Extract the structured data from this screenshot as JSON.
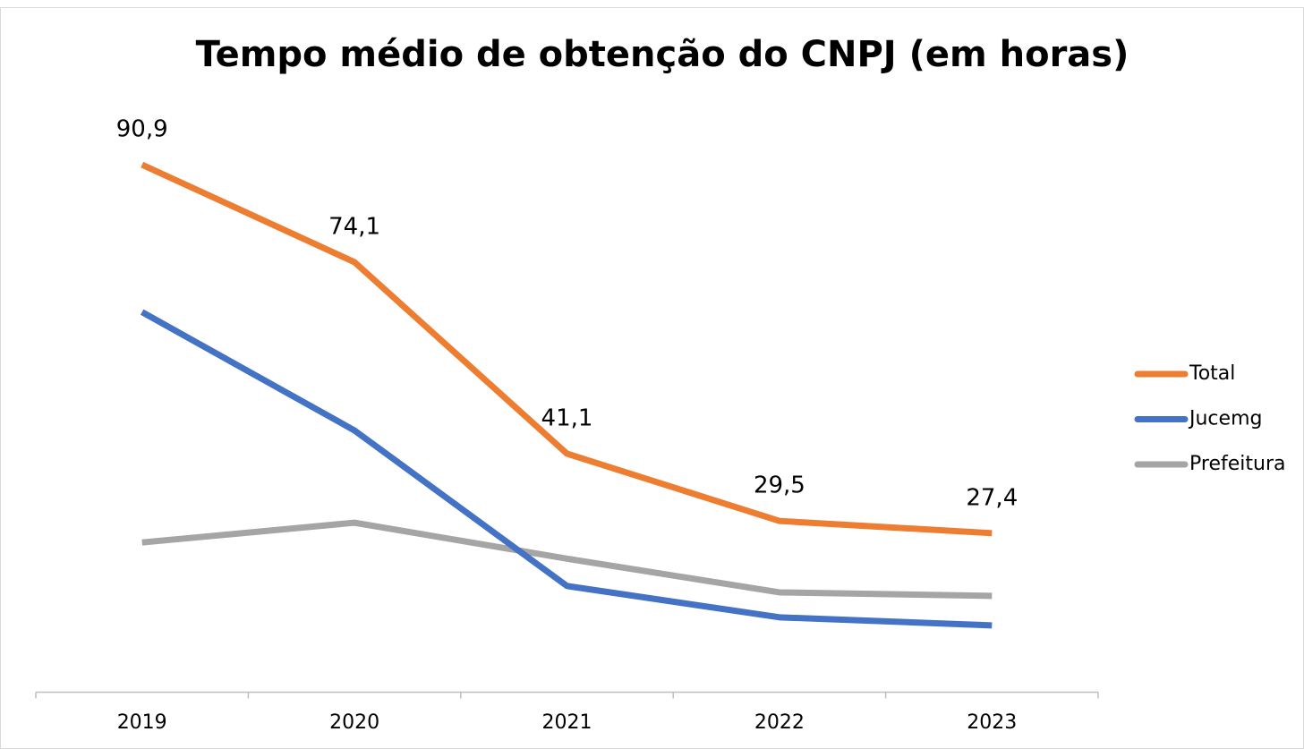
{
  "chart_data": {
    "type": "line",
    "title": "Tempo médio de obtenção do CNPJ (em horas)",
    "categories": [
      "2019",
      "2020",
      "2021",
      "2022",
      "2023"
    ],
    "ylim": [
      0,
      100
    ],
    "legend": "right",
    "series": [
      {
        "name": "Total",
        "color": "#ed7d31",
        "values": [
          90.9,
          74.1,
          41.1,
          29.5,
          27.4
        ],
        "value_labels": [
          "90,9",
          "74,1",
          "41,1",
          "29,5",
          "27,4"
        ]
      },
      {
        "name": "Jucemg",
        "color": "#4472c4",
        "values": [
          65.5,
          45.1,
          18.3,
          12.9,
          11.5
        ]
      },
      {
        "name": "Prefeitura",
        "color": "#a5a5a5",
        "values": [
          25.8,
          29.2,
          23.0,
          17.2,
          16.6
        ]
      }
    ]
  }
}
